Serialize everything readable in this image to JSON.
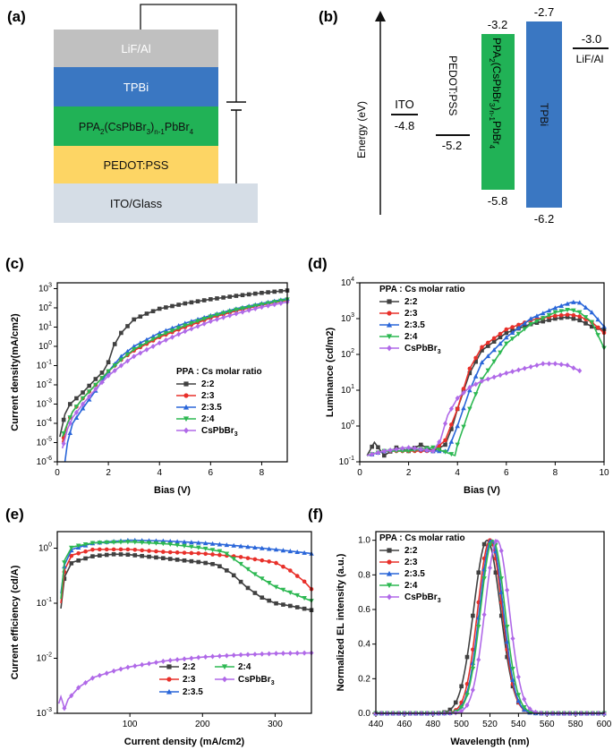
{
  "colors": {
    "2:2": "#404040",
    "2:3": "#e8302a",
    "2:3.5": "#2a66d9",
    "2:4": "#2db852",
    "CsPbBr3": "#b069e8"
  },
  "panel_a": {
    "label": "(a)",
    "layers": [
      {
        "name": "LiF/Al",
        "color": "#c0c0c0",
        "text_color": "#ffffff"
      },
      {
        "name": "TPBi",
        "color": "#3a77c2",
        "text_color": "#ffffff"
      },
      {
        "name_main": "PPA",
        "name_parts": [
          "2",
          "(CsPbBr",
          "3",
          ")",
          "n-1",
          "PbBr",
          "4"
        ],
        "color": "#21b256",
        "text_color": "#111111"
      },
      {
        "name": "PEDOT:PSS",
        "color": "#fdd564",
        "text_color": "#111111"
      },
      {
        "name": "ITO/Glass",
        "color": "#d5dde6",
        "text_color": "#111111"
      }
    ]
  },
  "panel_b": {
    "label": "(b)",
    "ylabel": "Energy (eV)",
    "ito": {
      "name": "ITO",
      "value": "-4.8"
    },
    "pedot": {
      "name": "PEDOT:PSS",
      "value": "-5.2"
    },
    "ppa": {
      "top": "-3.2",
      "bottom": "-5.8",
      "name_parts": [
        "PPA",
        "2",
        "(CsPbBr",
        "3",
        ")",
        "n-1",
        "PbBr",
        "4"
      ]
    },
    "tpbi": {
      "name": "TPBi",
      "top": "-2.7",
      "bottom": "-6.2"
    },
    "lifal": {
      "name": "LiF/Al",
      "value": "-3.0"
    }
  },
  "chart_data": [
    {
      "panel": "(c)",
      "type": "line",
      "xlabel": "Bias (V)",
      "ylabel": "Current density(mA/cm2)",
      "x_scale": "linear",
      "y_scale": "log",
      "xlim": [
        0,
        9
      ],
      "ylim": [
        1e-06,
        2000
      ],
      "xticks": [
        "0",
        "2",
        "4",
        "6",
        "8"
      ],
      "yticks_exp": [
        "-6",
        "-5",
        "-4",
        "-3",
        "-2",
        "-1",
        "0",
        "1",
        "2",
        "3"
      ],
      "legend_title": "PPA : Cs molar ratio",
      "legend_pos": "lower-right",
      "series": [
        {
          "name": "2:2",
          "points": [
            [
              0.1,
              2e-05
            ],
            [
              0.3,
              0.0003
            ],
            [
              0.5,
              0.001
            ],
            [
              1,
              0.004
            ],
            [
              1.5,
              0.02
            ],
            [
              1.8,
              0.05
            ],
            [
              2,
              0.15
            ],
            [
              2.2,
              1
            ],
            [
              2.5,
              5
            ],
            [
              3,
              25
            ],
            [
              3.5,
              50
            ],
            [
              4,
              90
            ],
            [
              5,
              170
            ],
            [
              6,
              280
            ],
            [
              7,
              420
            ],
            [
              8,
              600
            ],
            [
              9,
              800
            ]
          ]
        },
        {
          "name": "2:3",
          "points": [
            [
              0.2,
              1e-05
            ],
            [
              0.4,
              0.0001
            ],
            [
              0.6,
              0.0004
            ],
            [
              1,
              0.002
            ],
            [
              1.5,
              0.01
            ],
            [
              2,
              0.05
            ],
            [
              2.5,
              0.2
            ],
            [
              3,
              0.6
            ],
            [
              4,
              3
            ],
            [
              5,
              10
            ],
            [
              6,
              30
            ],
            [
              7,
              70
            ],
            [
              8,
              140
            ],
            [
              9,
              250
            ]
          ]
        },
        {
          "name": "2:3.5",
          "points": [
            [
              0.3,
              1e-06
            ],
            [
              0.4,
              1e-05
            ],
            [
              0.6,
              0.0001
            ],
            [
              1,
              0.0006
            ],
            [
              1.5,
              0.005
            ],
            [
              2,
              0.05
            ],
            [
              2.5,
              0.3
            ],
            [
              3,
              1
            ],
            [
              4,
              5
            ],
            [
              5,
              16
            ],
            [
              6,
              40
            ],
            [
              7,
              90
            ],
            [
              8,
              170
            ],
            [
              9,
              300
            ]
          ]
        },
        {
          "name": "2:4",
          "points": [
            [
              0.2,
              2e-05
            ],
            [
              0.4,
              0.0001
            ],
            [
              0.6,
              0.0004
            ],
            [
              1,
              0.002
            ],
            [
              1.5,
              0.01
            ],
            [
              2,
              0.05
            ],
            [
              2.5,
              0.2
            ],
            [
              3,
              0.7
            ],
            [
              4,
              3.5
            ],
            [
              5,
              12
            ],
            [
              6,
              35
            ],
            [
              7,
              80
            ],
            [
              8,
              150
            ],
            [
              9,
              270
            ]
          ]
        },
        {
          "name": "CsPbBr3",
          "points": [
            [
              0.2,
              5e-06
            ],
            [
              0.4,
              5e-05
            ],
            [
              0.6,
              0.0002
            ],
            [
              1,
              0.001
            ],
            [
              1.5,
              0.006
            ],
            [
              2,
              0.03
            ],
            [
              2.5,
              0.1
            ],
            [
              3,
              0.3
            ],
            [
              4,
              1.5
            ],
            [
              5,
              6
            ],
            [
              6,
              20
            ],
            [
              7,
              50
            ],
            [
              8,
              110
            ],
            [
              9,
              200
            ]
          ]
        }
      ]
    },
    {
      "panel": "(d)",
      "type": "line",
      "xlabel": "Bias (V)",
      "ylabel": "Luminance (cd/m2)",
      "x_scale": "linear",
      "y_scale": "log",
      "xlim": [
        0,
        10
      ],
      "ylim": [
        0.1,
        10000
      ],
      "xticks": [
        "0",
        "2",
        "4",
        "6",
        "8",
        "10"
      ],
      "yticks_exp": [
        "-1",
        "0",
        "1",
        "2",
        "3",
        "4"
      ],
      "legend_title": "PPA : Cs molar ratio",
      "legend_pos": "upper-left",
      "series": [
        {
          "name": "2:2",
          "points": [
            [
              0.3,
              0.15
            ],
            [
              0.6,
              0.35
            ],
            [
              1,
              0.15
            ],
            [
              1.5,
              0.25
            ],
            [
              2,
              0.2
            ],
            [
              2.5,
              0.3
            ],
            [
              3,
              0.2
            ],
            [
              3.5,
              0.3
            ],
            [
              3.8,
              1
            ],
            [
              4,
              3
            ],
            [
              4.5,
              30
            ],
            [
              5,
              130
            ],
            [
              6,
              400
            ],
            [
              7,
              700
            ],
            [
              8,
              1000
            ],
            [
              8.5,
              1100
            ],
            [
              9,
              900
            ],
            [
              9.5,
              600
            ],
            [
              10,
              500
            ]
          ]
        },
        {
          "name": "2:3",
          "points": [
            [
              0.3,
              0.15
            ],
            [
              1,
              0.2
            ],
            [
              2,
              0.2
            ],
            [
              3,
              0.2
            ],
            [
              3.5,
              0.4
            ],
            [
              4,
              3
            ],
            [
              4.5,
              40
            ],
            [
              5,
              160
            ],
            [
              6,
              500
            ],
            [
              7,
              900
            ],
            [
              8,
              1200
            ],
            [
              8.6,
              1300
            ],
            [
              9,
              1150
            ],
            [
              9.5,
              800
            ],
            [
              10,
              400
            ]
          ]
        },
        {
          "name": "2:3.5",
          "points": [
            [
              0.3,
              0.15
            ],
            [
              1,
              0.2
            ],
            [
              2,
              0.25
            ],
            [
              3,
              0.2
            ],
            [
              3.6,
              0.2
            ],
            [
              4,
              1
            ],
            [
              4.5,
              10
            ],
            [
              5,
              60
            ],
            [
              6,
              300
            ],
            [
              7,
              1000
            ],
            [
              8,
              2000
            ],
            [
              8.7,
              2900
            ],
            [
              9,
              2800
            ],
            [
              9.5,
              1500
            ],
            [
              10,
              600
            ]
          ]
        },
        {
          "name": "2:4",
          "points": [
            [
              0.3,
              0.15
            ],
            [
              1,
              0.2
            ],
            [
              2,
              0.2
            ],
            [
              3,
              0.25
            ],
            [
              3.9,
              0.15
            ],
            [
              4,
              0.3
            ],
            [
              4.5,
              3
            ],
            [
              5,
              20
            ],
            [
              6,
              200
            ],
            [
              7,
              700
            ],
            [
              8,
              1500
            ],
            [
              8.6,
              1800
            ],
            [
              9,
              1500
            ],
            [
              9.5,
              800
            ],
            [
              10,
              150
            ]
          ]
        },
        {
          "name": "CsPbBr3",
          "points": [
            [
              0.3,
              0.15
            ],
            [
              1,
              0.2
            ],
            [
              2,
              0.25
            ],
            [
              3,
              0.2
            ],
            [
              3.3,
              0.4
            ],
            [
              3.6,
              2
            ],
            [
              4,
              6
            ],
            [
              4.5,
              12
            ],
            [
              5,
              18
            ],
            [
              6,
              30
            ],
            [
              7,
              45
            ],
            [
              7.5,
              55
            ],
            [
              8,
              55
            ],
            [
              8.5,
              50
            ],
            [
              9,
              35
            ]
          ]
        }
      ]
    },
    {
      "panel": "(e)",
      "type": "line",
      "xlabel": "Current density (mA/cm2)",
      "ylabel": "Current efficiency (cd/A)",
      "x_scale": "linear",
      "y_scale": "log",
      "xlim": [
        0,
        350
      ],
      "ylim": [
        0.001,
        2
      ],
      "xticks": [
        "100",
        "200",
        "300"
      ],
      "yticks_exp": [
        "-3",
        "-2",
        "-1",
        "0"
      ],
      "legend_title": "",
      "legend_pos": "lower-right",
      "series": [
        {
          "name": "2:2",
          "points": [
            [
              5,
              0.08
            ],
            [
              10,
              0.3
            ],
            [
              20,
              0.55
            ],
            [
              50,
              0.72
            ],
            [
              80,
              0.78
            ],
            [
              100,
              0.76
            ],
            [
              150,
              0.65
            ],
            [
              200,
              0.55
            ],
            [
              220,
              0.5
            ],
            [
              240,
              0.35
            ],
            [
              260,
              0.2
            ],
            [
              280,
              0.13
            ],
            [
              300,
              0.1
            ],
            [
              320,
              0.09
            ],
            [
              350,
              0.075
            ]
          ]
        },
        {
          "name": "2:3",
          "points": [
            [
              5,
              0.1
            ],
            [
              10,
              0.4
            ],
            [
              20,
              0.75
            ],
            [
              50,
              0.95
            ],
            [
              100,
              0.95
            ],
            [
              150,
              0.85
            ],
            [
              200,
              0.8
            ],
            [
              250,
              0.7
            ],
            [
              300,
              0.55
            ],
            [
              320,
              0.4
            ],
            [
              340,
              0.25
            ],
            [
              350,
              0.18
            ]
          ]
        },
        {
          "name": "2:3.5",
          "points": [
            [
              5,
              0.15
            ],
            [
              10,
              0.5
            ],
            [
              20,
              0.95
            ],
            [
              50,
              1.25
            ],
            [
              100,
              1.4
            ],
            [
              150,
              1.35
            ],
            [
              200,
              1.25
            ],
            [
              250,
              1.1
            ],
            [
              300,
              0.95
            ],
            [
              350,
              0.8
            ]
          ]
        },
        {
          "name": "2:4",
          "points": [
            [
              5,
              0.12
            ],
            [
              10,
              0.6
            ],
            [
              20,
              1.05
            ],
            [
              50,
              1.25
            ],
            [
              100,
              1.3
            ],
            [
              150,
              1.2
            ],
            [
              200,
              1.0
            ],
            [
              230,
              0.85
            ],
            [
              250,
              0.55
            ],
            [
              270,
              0.35
            ],
            [
              300,
              0.2
            ],
            [
              330,
              0.14
            ],
            [
              350,
              0.11
            ]
          ]
        },
        {
          "name": "CsPbBr3",
          "points": [
            [
              2,
              0.0015
            ],
            [
              5,
              0.002
            ],
            [
              8,
              0.0015
            ],
            [
              10,
              0.0012
            ],
            [
              15,
              0.0018
            ],
            [
              30,
              0.003
            ],
            [
              50,
              0.0045
            ],
            [
              80,
              0.006
            ],
            [
              100,
              0.007
            ],
            [
              150,
              0.009
            ],
            [
              200,
              0.0105
            ],
            [
              250,
              0.0115
            ],
            [
              300,
              0.0122
            ],
            [
              350,
              0.0125
            ]
          ]
        }
      ]
    },
    {
      "panel": "(f)",
      "type": "line",
      "xlabel": "Wavelength (nm)",
      "ylabel": "Normalized EL intensity (a.u.)",
      "x_scale": "linear",
      "y_scale": "linear",
      "xlim": [
        440,
        600
      ],
      "ylim": [
        0,
        1.05
      ],
      "xticks": [
        "440",
        "460",
        "480",
        "500",
        "520",
        "540",
        "560",
        "580",
        "600"
      ],
      "yticks": [
        "0.0",
        "0.2",
        "0.4",
        "0.6",
        "0.8",
        "1.0"
      ],
      "legend_title": "PPA : Cs molar ratio",
      "legend_pos": "upper-left",
      "series": [
        {
          "name": "2:2",
          "peak": 518,
          "fwhm": 22
        },
        {
          "name": "2:3",
          "peak": 520,
          "fwhm": 20
        },
        {
          "name": "2:3.5",
          "peak": 521,
          "fwhm": 19.5
        },
        {
          "name": "2:4",
          "peak": 522,
          "fwhm": 20
        },
        {
          "name": "CsPbBr3",
          "peak": 525,
          "fwhm": 20
        }
      ]
    }
  ],
  "labels": {
    "c": "(c)",
    "d": "(d)",
    "e": "(e)",
    "f": "(f)"
  },
  "legend_e": [
    "2:2",
    "2:4",
    "2:3",
    "CsPbBr3",
    "2:3.5"
  ]
}
